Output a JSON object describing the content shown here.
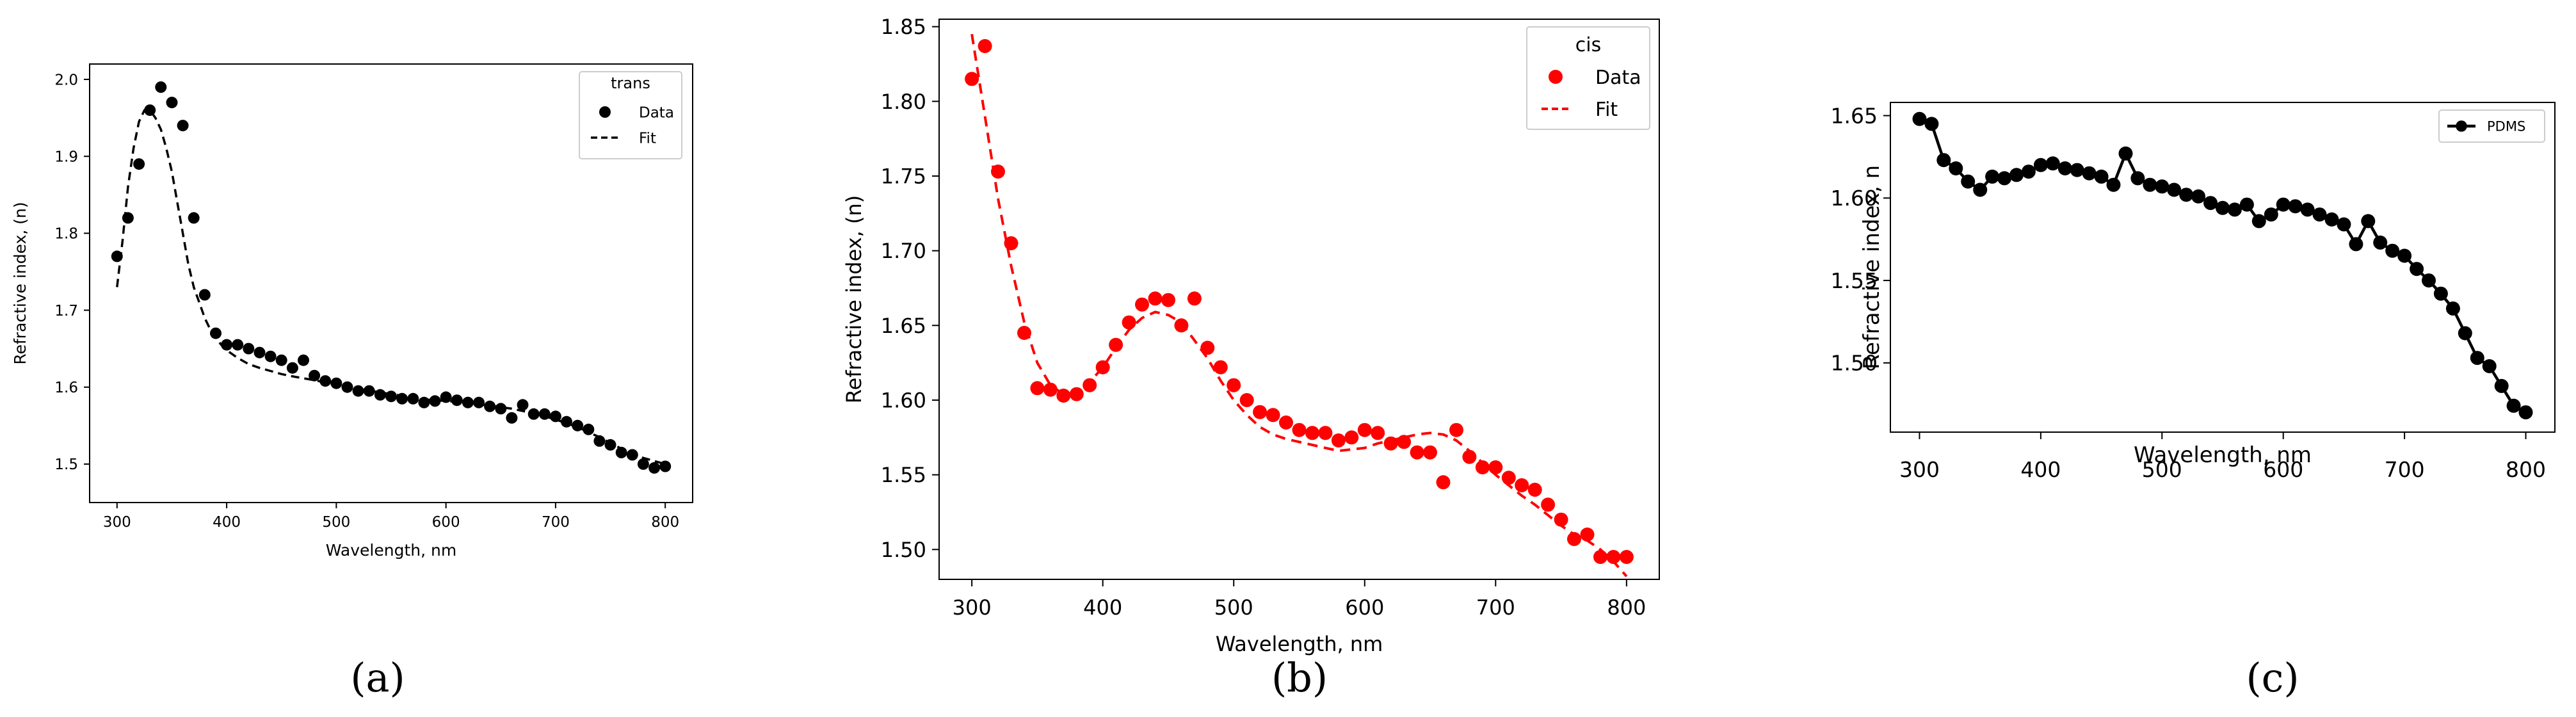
{
  "chart_data": [
    {
      "type": "scatter",
      "title": "",
      "xlabel": "Wavelength, nm",
      "ylabel": "Refractive index, (n)",
      "xlim": [
        275,
        825
      ],
      "ylim": [
        1.45,
        2.02
      ],
      "xticks": [
        300,
        400,
        500,
        600,
        700,
        800
      ],
      "yticks": [
        1.5,
        1.6,
        1.7,
        1.8,
        1.9,
        2.0
      ],
      "yticklabels": [
        "1.5",
        "1.6",
        "1.7",
        "1.8",
        "1.9",
        "2.0"
      ],
      "legend": {
        "title": "trans",
        "location": "top-right",
        "entries": [
          "Data",
          "Fit"
        ]
      },
      "caption": "(a)",
      "color": "#000000",
      "series": [
        {
          "name": "Data",
          "style": "markers",
          "x": [
            300,
            310,
            320,
            330,
            340,
            350,
            360,
            370,
            380,
            390,
            400,
            410,
            420,
            430,
            440,
            450,
            460,
            470,
            480,
            490,
            500,
            510,
            520,
            530,
            540,
            550,
            560,
            570,
            580,
            590,
            600,
            610,
            620,
            630,
            640,
            650,
            660,
            670,
            680,
            690,
            700,
            710,
            720,
            730,
            740,
            750,
            760,
            770,
            780,
            790,
            800
          ],
          "y": [
            1.77,
            1.82,
            1.89,
            1.96,
            1.99,
            1.97,
            1.94,
            1.82,
            1.72,
            1.67,
            1.655,
            1.655,
            1.65,
            1.645,
            1.64,
            1.635,
            1.625,
            1.635,
            1.615,
            1.608,
            1.605,
            1.6,
            1.595,
            1.595,
            1.59,
            1.588,
            1.585,
            1.585,
            1.58,
            1.582,
            1.587,
            1.583,
            1.58,
            1.58,
            1.575,
            1.572,
            1.56,
            1.577,
            1.565,
            1.565,
            1.562,
            1.555,
            1.55,
            1.545,
            1.53,
            1.525,
            1.515,
            1.512,
            1.5,
            1.495,
            1.497
          ]
        },
        {
          "name": "Fit",
          "style": "dashed",
          "x": [
            300,
            305,
            310,
            315,
            320,
            325,
            330,
            335,
            340,
            345,
            350,
            355,
            360,
            365,
            370,
            375,
            380,
            385,
            390,
            395,
            400,
            410,
            420,
            430,
            440,
            450,
            460,
            480,
            500,
            520,
            540,
            560,
            580,
            600,
            620,
            640,
            660,
            680,
            700,
            720,
            740,
            760,
            780,
            800
          ],
          "y": [
            1.73,
            1.79,
            1.86,
            1.91,
            1.945,
            1.96,
            1.96,
            1.95,
            1.935,
            1.91,
            1.88,
            1.84,
            1.8,
            1.76,
            1.73,
            1.71,
            1.69,
            1.675,
            1.665,
            1.655,
            1.648,
            1.638,
            1.63,
            1.625,
            1.621,
            1.617,
            1.614,
            1.609,
            1.603,
            1.598,
            1.593,
            1.589,
            1.584,
            1.582,
            1.58,
            1.576,
            1.572,
            1.566,
            1.558,
            1.548,
            1.535,
            1.52,
            1.508,
            1.5
          ]
        }
      ]
    },
    {
      "type": "scatter",
      "title": "",
      "xlabel": "Wavelength, nm",
      "ylabel": "Refractive index, (n)",
      "xlim": [
        275,
        825
      ],
      "ylim": [
        1.48,
        1.855
      ],
      "xticks": [
        300,
        400,
        500,
        600,
        700,
        800
      ],
      "yticks": [
        1.5,
        1.55,
        1.6,
        1.65,
        1.7,
        1.75,
        1.8,
        1.85
      ],
      "yticklabels": [
        "1.50",
        "1.55",
        "1.60",
        "1.65",
        "1.70",
        "1.75",
        "1.80",
        "1.85"
      ],
      "legend": {
        "title": "cis",
        "location": "top-right",
        "entries": [
          "Data",
          "Fit"
        ]
      },
      "caption": "(b)",
      "color": "#ff0000",
      "series": [
        {
          "name": "Data",
          "style": "markers",
          "x": [
            300,
            310,
            320,
            330,
            340,
            350,
            360,
            370,
            380,
            390,
            400,
            410,
            420,
            430,
            440,
            450,
            460,
            470,
            480,
            490,
            500,
            510,
            520,
            530,
            540,
            550,
            560,
            570,
            580,
            590,
            600,
            610,
            620,
            630,
            640,
            650,
            660,
            670,
            680,
            690,
            700,
            710,
            720,
            730,
            740,
            750,
            760,
            770,
            780,
            790,
            800
          ],
          "y": [
            1.815,
            1.837,
            1.753,
            1.705,
            1.645,
            1.608,
            1.607,
            1.603,
            1.604,
            1.61,
            1.622,
            1.637,
            1.652,
            1.664,
            1.668,
            1.667,
            1.65,
            1.668,
            1.635,
            1.622,
            1.61,
            1.6,
            1.592,
            1.59,
            1.585,
            1.58,
            1.578,
            1.578,
            1.573,
            1.575,
            1.58,
            1.578,
            1.571,
            1.572,
            1.565,
            1.565,
            1.545,
            1.58,
            1.562,
            1.555,
            1.555,
            1.548,
            1.543,
            1.54,
            1.53,
            1.52,
            1.507,
            1.51,
            1.495,
            1.495,
            1.495
          ]
        },
        {
          "name": "Fit",
          "style": "dashed",
          "x": [
            300,
            310,
            320,
            330,
            340,
            350,
            360,
            370,
            380,
            390,
            400,
            410,
            420,
            430,
            440,
            450,
            460,
            470,
            480,
            490,
            500,
            510,
            520,
            530,
            540,
            550,
            560,
            570,
            580,
            590,
            600,
            610,
            620,
            630,
            640,
            650,
            660,
            670,
            680,
            690,
            700,
            710,
            720,
            730,
            740,
            750,
            760,
            770,
            780,
            790,
            800
          ],
          "y": [
            1.845,
            1.79,
            1.735,
            1.69,
            1.652,
            1.625,
            1.61,
            1.604,
            1.605,
            1.612,
            1.622,
            1.635,
            1.647,
            1.655,
            1.659,
            1.657,
            1.652,
            1.64,
            1.628,
            1.613,
            1.6,
            1.59,
            1.582,
            1.577,
            1.574,
            1.572,
            1.57,
            1.568,
            1.566,
            1.567,
            1.568,
            1.571,
            1.573,
            1.575,
            1.577,
            1.578,
            1.577,
            1.573,
            1.566,
            1.558,
            1.55,
            1.543,
            1.536,
            1.53,
            1.523,
            1.516,
            1.51,
            1.506,
            1.5,
            1.492,
            1.482
          ]
        }
      ]
    },
    {
      "type": "line",
      "title": "",
      "xlabel": "Wavelength, nm",
      "ylabel": "Refractive index, n",
      "xlim": [
        276,
        824
      ],
      "ylim": [
        1.458,
        1.658
      ],
      "xticks": [
        300,
        400,
        500,
        600,
        700,
        800
      ],
      "yticks": [
        1.5,
        1.55,
        1.6,
        1.65
      ],
      "yticklabels": [
        "1.50",
        "1.55",
        "1.60",
        "1.65"
      ],
      "legend": {
        "title": "",
        "location": "top-right",
        "entries": [
          "PDMS"
        ]
      },
      "caption": "(c)",
      "color": "#000000",
      "series": [
        {
          "name": "PDMS",
          "style": "line+markers",
          "x": [
            300,
            310,
            320,
            330,
            340,
            350,
            360,
            370,
            380,
            390,
            400,
            410,
            420,
            430,
            440,
            450,
            460,
            470,
            480,
            490,
            500,
            510,
            520,
            530,
            540,
            550,
            560,
            570,
            580,
            590,
            600,
            610,
            620,
            630,
            640,
            650,
            660,
            670,
            680,
            690,
            700,
            710,
            720,
            730,
            740,
            750,
            760,
            770,
            780,
            790,
            800
          ],
          "y": [
            1.648,
            1.645,
            1.623,
            1.618,
            1.61,
            1.605,
            1.613,
            1.612,
            1.614,
            1.616,
            1.62,
            1.621,
            1.618,
            1.617,
            1.615,
            1.613,
            1.608,
            1.627,
            1.612,
            1.608,
            1.607,
            1.605,
            1.602,
            1.601,
            1.597,
            1.594,
            1.593,
            1.596,
            1.586,
            1.59,
            1.596,
            1.595,
            1.593,
            1.59,
            1.587,
            1.584,
            1.572,
            1.586,
            1.573,
            1.568,
            1.565,
            1.557,
            1.55,
            1.542,
            1.533,
            1.518,
            1.503,
            1.498,
            1.486,
            1.474,
            1.47
          ]
        }
      ]
    }
  ]
}
